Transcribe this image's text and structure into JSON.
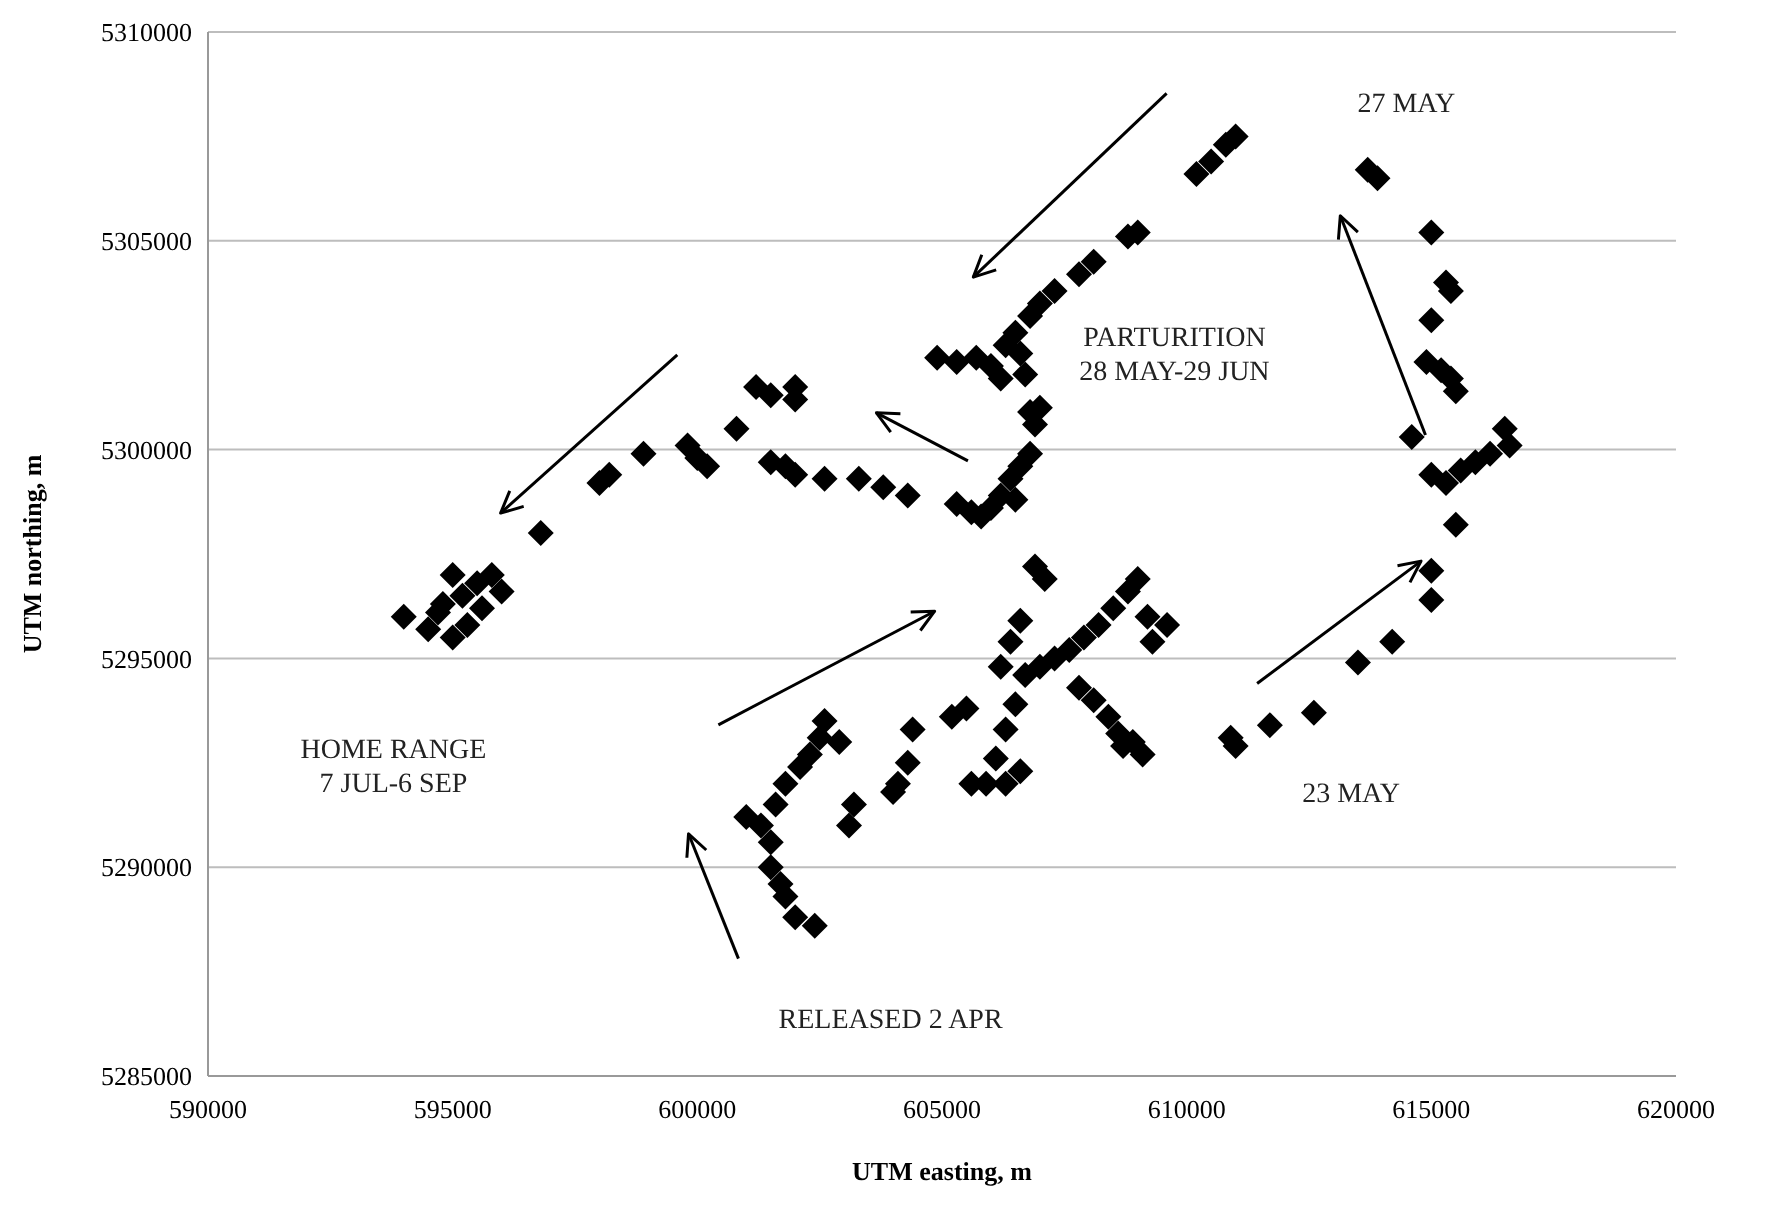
{
  "chart_data": {
    "type": "scatter",
    "xlabel": "UTM easting, m",
    "ylabel": "UTM northing, m",
    "xlim": [
      590000,
      620000
    ],
    "xticks": [
      590000,
      595000,
      600000,
      605000,
      610000,
      615000,
      620000
    ],
    "ylim": [
      5285000,
      5310000
    ],
    "yticks": [
      5285000,
      5290000,
      5295000,
      5300000,
      5305000,
      5310000
    ],
    "grid": "y",
    "marker": "diamond",
    "annotations": [
      "27 MAY",
      "PARTURITION\n28 MAY-29 JUN",
      "HOME RANGE\n7 JUL-6 SEP",
      "23 MAY",
      "RELEASED 2 APR"
    ],
    "series": [
      {
        "color": "#000000",
        "x": [
          594000,
          594500,
          594800,
          595000,
          595200,
          595500,
          595800,
          596000,
          595300,
          594700,
          595600,
          595000,
          596800,
          598000,
          598200,
          598900,
          599800,
          600000,
          600200,
          600800,
          601200,
          601500,
          602000,
          602000,
          601500,
          601800,
          602000,
          602600,
          603300,
          603800,
          604300,
          605300,
          605600,
          606000,
          606200,
          606400,
          606600,
          606800,
          606500,
          605800,
          606800,
          607000,
          606900,
          604900,
          605300,
          605700,
          606000,
          606300,
          606600,
          606200,
          606700,
          606500,
          606800,
          607000,
          607300,
          607800,
          608100,
          608800,
          609000,
          610200,
          610500,
          610800,
          611000,
          613700,
          613900,
          615000,
          615300,
          615400,
          615000,
          614900,
          615200,
          615400,
          615500,
          614600,
          615000,
          615300,
          615600,
          615900,
          616200,
          616500,
          616600,
          615500,
          615000,
          615000,
          614200,
          613500,
          612600,
          611700,
          610900,
          611000,
          606700,
          607000,
          607300,
          607600,
          607900,
          608200,
          608500,
          608800,
          609000,
          609200,
          609600,
          609300,
          607800,
          608100,
          608400,
          608600,
          608900,
          609100,
          608700,
          606900,
          607100,
          606600,
          606400,
          606200,
          606500,
          606300,
          606100,
          605900,
          605600,
          606300,
          606600,
          605500,
          605200,
          604400,
          604300,
          604100,
          603200,
          603100,
          604000,
          601000,
          601300,
          601500,
          601500,
          601700,
          601800,
          602000,
          602400,
          601600,
          601800,
          602100,
          602300,
          602500,
          602600,
          602900
        ],
        "values": [
          5296000,
          5295700,
          5296300,
          5295500,
          5296500,
          5296800,
          5297000,
          5296600,
          5295800,
          5296100,
          5296200,
          5297000,
          5298000,
          5299200,
          5299400,
          5299900,
          5300100,
          5299800,
          5299600,
          5300500,
          5301500,
          5301300,
          5301500,
          5301200,
          5299700,
          5299600,
          5299400,
          5299300,
          5299300,
          5299100,
          5298900,
          5298700,
          5298500,
          5298600,
          5298900,
          5299300,
          5299600,
          5299900,
          5298800,
          5298400,
          5300900,
          5301000,
          5300600,
          5302200,
          5302100,
          5302200,
          5302000,
          5302500,
          5302300,
          5301700,
          5301800,
          5302800,
          5303200,
          5303500,
          5303800,
          5304200,
          5304500,
          5305100,
          5305200,
          5306600,
          5306900,
          5307300,
          5307500,
          5306700,
          5306500,
          5305200,
          5304000,
          5303800,
          5303100,
          5302100,
          5301900,
          5301700,
          5301400,
          5300300,
          5299400,
          5299200,
          5299500,
          5299700,
          5299900,
          5300500,
          5300100,
          5298200,
          5297100,
          5296400,
          5295400,
          5294900,
          5293700,
          5293400,
          5293100,
          5292900,
          5294600,
          5294800,
          5295000,
          5295200,
          5295500,
          5295800,
          5296200,
          5296600,
          5296900,
          5296000,
          5295800,
          5295400,
          5294300,
          5294000,
          5293600,
          5293200,
          5293000,
          5292700,
          5292900,
          5297200,
          5296900,
          5295900,
          5295400,
          5294800,
          5293900,
          5293300,
          5292600,
          5292000,
          5292000,
          5292000,
          5292300,
          5293800,
          5293600,
          5293300,
          5292500,
          5292000,
          5291500,
          5291000,
          5291800,
          5291200,
          5291000,
          5290600,
          5290000,
          5289600,
          5289300,
          5288800,
          5288600,
          5291500,
          5292000,
          5292400,
          5292700,
          5293100,
          5293500,
          5293000
        ]
      }
    ]
  }
}
